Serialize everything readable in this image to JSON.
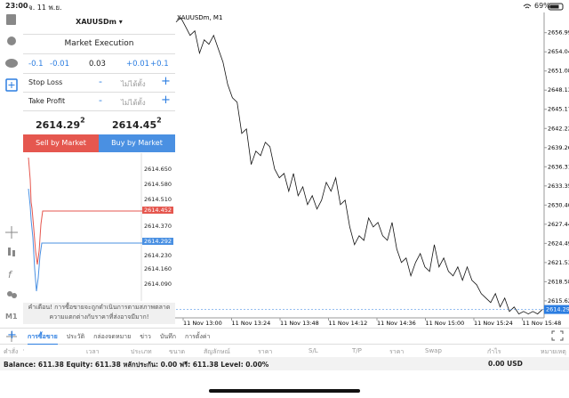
{
  "status_bar": {
    "time": "23:00",
    "date": "จ. 11 พ.ย.",
    "battery": "69%"
  },
  "order_panel": {
    "symbol": "XAUUSDm",
    "execution": "Market Execution",
    "volume_steps": [
      "-0.1",
      "-0.01",
      "0.03",
      "+0.01",
      "+0.1"
    ],
    "stop_loss": {
      "label": "Stop Loss",
      "minus": "-",
      "value": "ไม่ได้ตั้ง",
      "plus": "+"
    },
    "take_profit": {
      "label": "Take Profit",
      "minus": "-",
      "value": "ไม่ได้ตั้ง",
      "plus": "+"
    },
    "bid": {
      "main": "2614.29",
      "last": "2"
    },
    "ask": {
      "main": "2614.45",
      "last": "2"
    },
    "sell_button": "Sell by Market",
    "buy_button": "Buy by Market",
    "tick_prices": [
      "2614.650",
      "2614.580",
      "2614.510",
      "2614.370",
      "2614.230",
      "2614.160",
      "2614.090"
    ],
    "ask_label": "2614.452",
    "bid_label": "2614.292",
    "warning": "คำเตือน! การซื้อขายจะถูกดำเนินการตามสภาพตลาด ความแตกต่างกับราคาที่ส่งอาจมีมาก!"
  },
  "chart_data": {
    "type": "line",
    "title": "XAUUSDm, M1",
    "color": "#111111",
    "grid": false,
    "xtick_labels": [
      "11 Nov 13:00",
      "11 Nov 13:24",
      "11 Nov 13:48",
      "11 Nov 14:12",
      "11 Nov 14:36",
      "11 Nov 15:00",
      "11 Nov 15:24",
      "11 Nov 15:48"
    ],
    "values": [
      2658.64,
      2659.33,
      2657.96,
      2656.58,
      2657.27,
      2653.84,
      2655.9,
      2655.21,
      2656.58,
      2654.52,
      2652.46,
      2649.02,
      2646.96,
      2646.27,
      2641.46,
      2642.15,
      2636.66,
      2638.72,
      2638.03,
      2640.09,
      2639.4,
      2635.97,
      2634.6,
      2635.28,
      2632.53,
      2635.28,
      2631.84,
      2633.22,
      2630.47,
      2631.84,
      2629.78,
      2631.16,
      2633.9,
      2632.53,
      2634.6,
      2630.47,
      2631.16,
      2627.03,
      2624.29,
      2625.66,
      2624.97,
      2628.41,
      2627.03,
      2627.72,
      2625.66,
      2624.97,
      2627.72,
      2623.6,
      2621.54,
      2622.23,
      2619.48,
      2621.54,
      2622.92,
      2620.86,
      2620.17,
      2624.29,
      2620.86,
      2622.23,
      2620.17,
      2619.48,
      2620.86,
      2618.8,
      2620.86,
      2618.8,
      2618.11,
      2616.74,
      2616.05,
      2615.36,
      2616.74,
      2614.67,
      2616.05,
      2613.99,
      2614.67,
      2613.6,
      2613.99,
      2613.6,
      2613.99,
      2613.6,
      2614.29
    ],
    "ylim": [
      2613.0,
      2659.7
    ],
    "yticks": [
      2656.995,
      {
        "value": 2654.04,
        "label": "2654.040"
      },
      2651.085,
      {
        "value": 2648.13,
        "label": "2648.130"
      },
      2645.175,
      {
        "value": 2642.22,
        "label": "2642.220"
      },
      2639.265,
      {
        "value": 2636.31,
        "label": "2636.310"
      },
      2633.355,
      {
        "value": 2630.4,
        "label": "2630.400"
      },
      2627.445,
      {
        "value": 2624.49,
        "label": "2624.490"
      },
      2621.535,
      {
        "value": 2618.58,
        "label": "2618.580"
      },
      2615.625
    ],
    "last_price": 2614.292,
    "last_price_color": "#2b7de1"
  },
  "tabs": [
    "การซื้อขาย",
    "ประวัติ",
    "กล่องจดหมาย",
    "ข่าว",
    "บันทึก",
    "การตั้งค่า"
  ],
  "table_headers": [
    "คำสั่ง",
    "เวลา",
    "ประเภท",
    "ขนาด",
    "สัญลักษณ์",
    "ราคา",
    "S/L",
    "T/P",
    "ราคา",
    "Swap",
    "กำไร",
    "หมายเหตุ"
  ],
  "balance": {
    "summary": "Balance: 611.38 Equity: 611.38 หลักประกัน: 0.00 ฟรี: 611.38 Level: 0.00%",
    "profit": "0.00 USD"
  }
}
